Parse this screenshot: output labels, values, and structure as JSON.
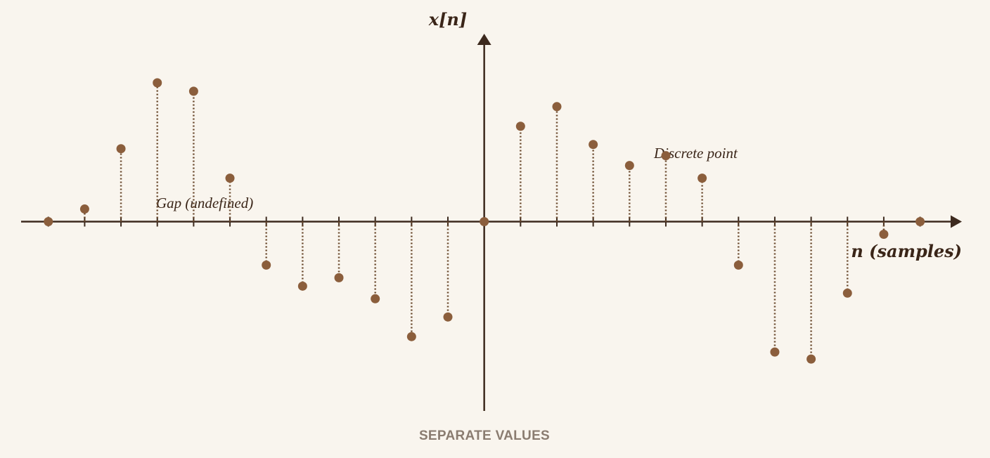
{
  "chart_data": {
    "type": "stem",
    "title": "SEPARATE VALUES",
    "y_label": "x[n]",
    "x_label": "n (samples)",
    "x": [
      -12,
      -11,
      -10,
      -9,
      -8,
      -7,
      -6,
      -5,
      -4,
      -3,
      -2,
      -1,
      0,
      1,
      2,
      3,
      4,
      5,
      6,
      7,
      8,
      9,
      10,
      11,
      12
    ],
    "values": [
      0,
      0.09,
      0.52,
      0.99,
      0.93,
      0.31,
      -0.31,
      -0.46,
      -0.4,
      -0.55,
      -0.82,
      -0.68,
      0,
      0.68,
      0.82,
      0.55,
      0.4,
      0.47,
      0.31,
      -0.31,
      -0.93,
      -0.98,
      -0.51,
      -0.09,
      0
    ],
    "xlim": [
      -12.75,
      13.15
    ],
    "ylim": [
      -1.35,
      1.34
    ],
    "color": "#8b5e3c",
    "axis_color": "#3d2a1e",
    "annotations": [
      {
        "text": "Gap (undefined)"
      },
      {
        "text": "Discrete point"
      }
    ]
  }
}
